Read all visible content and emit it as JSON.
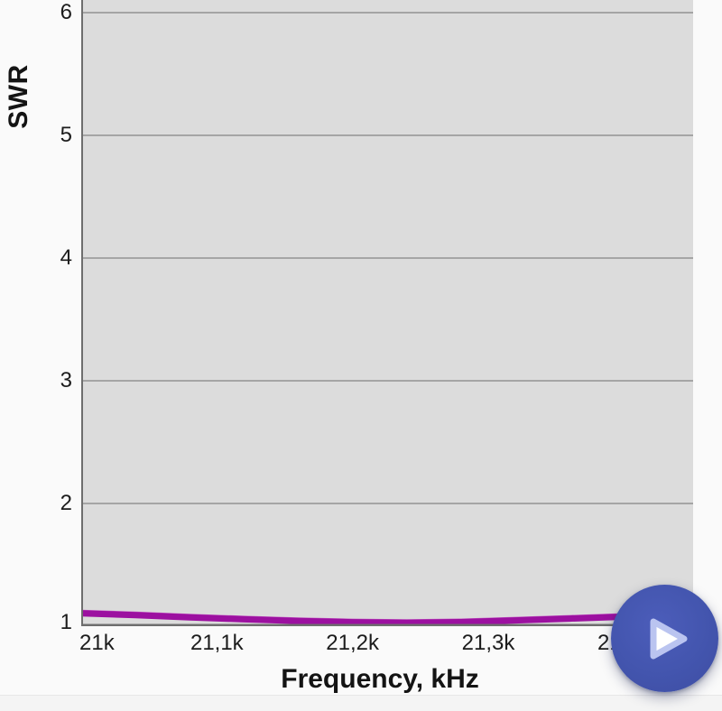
{
  "chart_data": {
    "type": "line",
    "title": "",
    "xlabel": "Frequency, kHz",
    "ylabel": "SWR",
    "grid": "horizontal-only",
    "x_range_khz": [
      21000,
      21451
    ],
    "y_range_swr": [
      1,
      6.103
    ],
    "x_ticks": [
      {
        "value": 21000,
        "label": "21k"
      },
      {
        "value": 21100,
        "label": "21,1k"
      },
      {
        "value": 21200,
        "label": "21,2k"
      },
      {
        "value": 21300,
        "label": "21,3k"
      },
      {
        "value": 21400,
        "label": "21,4k"
      }
    ],
    "y_ticks": [
      {
        "value": 1,
        "label": "1"
      },
      {
        "value": 2,
        "label": "2"
      },
      {
        "value": 3,
        "label": "3"
      },
      {
        "value": 4,
        "label": "4"
      },
      {
        "value": 5,
        "label": "5"
      },
      {
        "value": 6,
        "label": "6"
      }
    ],
    "series": [
      {
        "name": "SWR",
        "color": "#9c10a0",
        "highlight_color": "#c45fc5",
        "x": [
          21000,
          21040,
          21080,
          21120,
          21160,
          21200,
          21240,
          21280,
          21320,
          21360,
          21400,
          21451
        ],
        "y": [
          1.105,
          1.09,
          1.072,
          1.056,
          1.042,
          1.032,
          1.028,
          1.033,
          1.047,
          1.062,
          1.077,
          1.09
        ]
      }
    ]
  },
  "fab": {
    "icon": "play-icon",
    "color": "#4355ae",
    "triangle_color": "#ffffff",
    "triangle_glow": "#bac4f0"
  },
  "colors": {
    "page_bg": "#fafafa",
    "plot_bg": "#dcdcdc",
    "gridline": "#a5a5a5",
    "axis_line": "#6e6e6e",
    "tick_text": "#1c1c1c"
  }
}
